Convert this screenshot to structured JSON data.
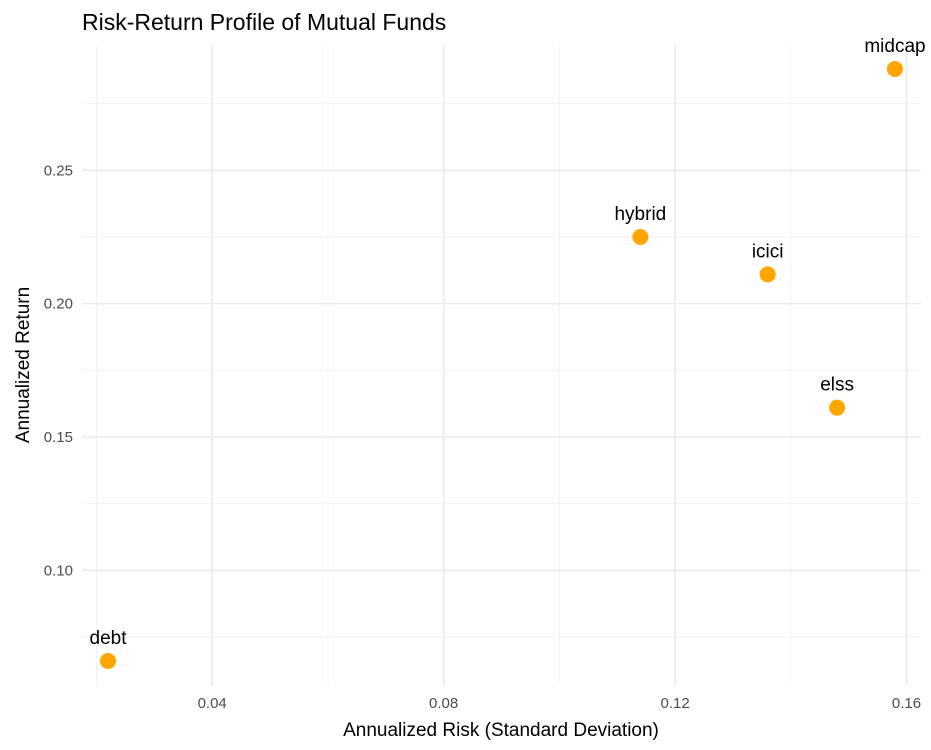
{
  "chart_data": {
    "type": "scatter",
    "title": "Risk-Return Profile of Mutual Funds",
    "xlabel": "Annualized Risk (Standard Deviation)",
    "ylabel": "Annualized Return",
    "xlim": [
      0.0175,
      0.1625
    ],
    "ylim": [
      0.057,
      0.297
    ],
    "x_ticks": [
      0.04,
      0.08,
      0.12,
      0.16
    ],
    "x_tick_labels": [
      "0.04",
      "0.08",
      "0.12",
      "0.16"
    ],
    "y_ticks": [
      0.1,
      0.15,
      0.2,
      0.25
    ],
    "y_tick_labels": [
      "0.10",
      "0.15",
      "0.20",
      "0.25"
    ],
    "grid": true,
    "marker_color": "#FFA500",
    "points": [
      {
        "label": "debt",
        "x": 0.022,
        "y": 0.066
      },
      {
        "label": "hybrid",
        "x": 0.114,
        "y": 0.225
      },
      {
        "label": "icici",
        "x": 0.136,
        "y": 0.211
      },
      {
        "label": "elss",
        "x": 0.148,
        "y": 0.161
      },
      {
        "label": "midcap",
        "x": 0.158,
        "y": 0.288
      }
    ]
  }
}
